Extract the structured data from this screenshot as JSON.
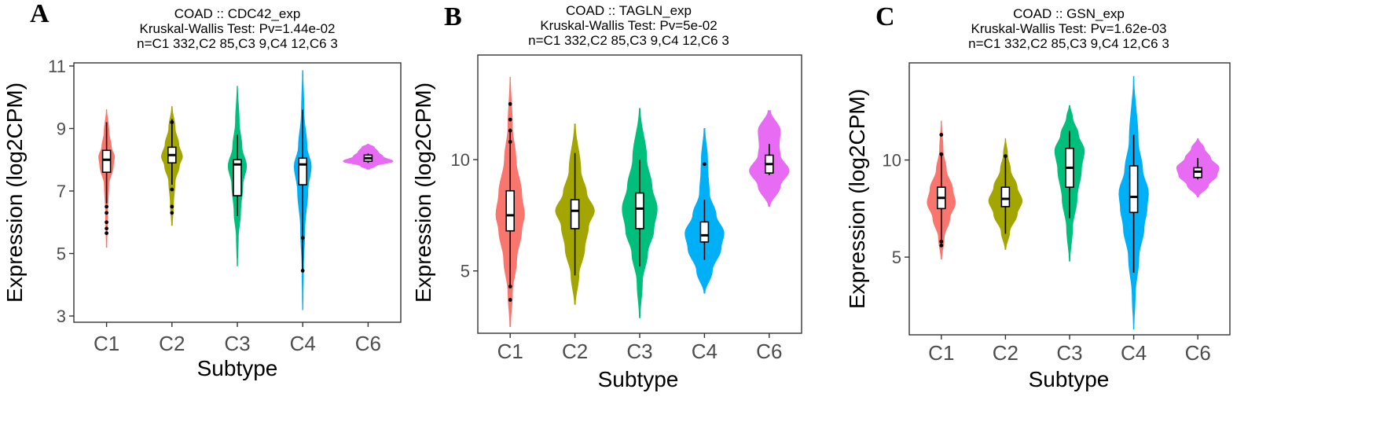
{
  "chart_data": [
    {
      "type": "violin",
      "panel_label": "A",
      "title_lines": [
        "COAD :: CDC42_exp",
        "Kruskal-Wallis Test: Pv=1.44e-02",
        "n=C1 332,C2 85,C3 9,C4 12,C6 3"
      ],
      "xlabel": "Subtype",
      "ylabel": "Expression (log2CPM)",
      "ylim": [
        2.8,
        11.1
      ],
      "yticks": [
        3,
        5,
        7,
        9,
        11
      ],
      "categories": [
        "C1",
        "C2",
        "C3",
        "C4",
        "C6"
      ],
      "colors": [
        "#F8766D",
        "#A3A500",
        "#00BF7D",
        "#00B0F6",
        "#E76BF3"
      ],
      "violins": [
        {
          "min": 5.2,
          "max": 9.6,
          "halfwidth": 0.12,
          "profile": [
            [
              5.2,
              0.03
            ],
            [
              6.3,
              0.12
            ],
            [
              7.2,
              0.28
            ],
            [
              7.8,
              0.85
            ],
            [
              8.1,
              1.0
            ],
            [
              8.4,
              0.6
            ],
            [
              8.9,
              0.3
            ],
            [
              9.6,
              0.02
            ]
          ]
        },
        {
          "min": 5.9,
          "max": 9.7,
          "halfwidth": 0.16,
          "profile": [
            [
              5.9,
              0.03
            ],
            [
              6.6,
              0.15
            ],
            [
              7.3,
              0.3
            ],
            [
              7.8,
              0.7
            ],
            [
              8.1,
              1.0
            ],
            [
              8.5,
              0.65
            ],
            [
              9.0,
              0.3
            ],
            [
              9.7,
              0.02
            ]
          ]
        },
        {
          "min": 4.6,
          "max": 10.35,
          "halfwidth": 0.14,
          "profile": [
            [
              4.6,
              0.02
            ],
            [
              5.5,
              0.1
            ],
            [
              6.3,
              0.35
            ],
            [
              7.2,
              0.6
            ],
            [
              7.8,
              1.0
            ],
            [
              8.4,
              0.5
            ],
            [
              9.2,
              0.2
            ],
            [
              10.35,
              0.02
            ]
          ]
        },
        {
          "min": 3.2,
          "max": 10.85,
          "halfwidth": 0.13,
          "profile": [
            [
              3.2,
              0.02
            ],
            [
              4.5,
              0.08
            ],
            [
              5.8,
              0.25
            ],
            [
              7.0,
              0.6
            ],
            [
              7.8,
              1.0
            ],
            [
              8.4,
              0.5
            ],
            [
              9.5,
              0.15
            ],
            [
              10.85,
              0.02
            ]
          ]
        },
        {
          "min": 7.7,
          "max": 8.5,
          "halfwidth": 0.38,
          "profile": [
            [
              7.7,
              0.05
            ],
            [
              7.8,
              0.3
            ],
            [
              7.95,
              1.0
            ],
            [
              8.1,
              0.6
            ],
            [
              8.25,
              0.4
            ],
            [
              8.4,
              0.25
            ],
            [
              8.5,
              0.02
            ]
          ]
        }
      ],
      "boxes": [
        {
          "q1": 7.6,
          "median": 8.0,
          "q3": 8.3,
          "wmin": 6.6,
          "wmax": 9.2,
          "outliers": [
            5.65,
            5.8,
            6.0,
            6.3,
            6.5
          ]
        },
        {
          "q1": 7.9,
          "median": 8.15,
          "q3": 8.4,
          "wmin": 7.2,
          "wmax": 9.3,
          "outliers": [
            6.3,
            6.5,
            7.05,
            9.2
          ]
        },
        {
          "q1": 6.85,
          "median": 7.85,
          "q3": 8.0,
          "wmin": 6.2,
          "wmax": 8.8,
          "outliers": []
        },
        {
          "q1": 7.2,
          "median": 7.85,
          "q3": 8.05,
          "wmin": 4.4,
          "wmax": 9.6,
          "outliers": [
            4.45,
            5.5
          ]
        },
        {
          "q1": 7.95,
          "median": 8.05,
          "q3": 8.15,
          "wmin": 7.9,
          "wmax": 8.2,
          "outliers": []
        }
      ]
    },
    {
      "type": "violin",
      "panel_label": "B",
      "title_lines": [
        "COAD :: TAGLN_exp",
        "Kruskal-Wallis Test: Pv=5e-02",
        "n=C1 332,C2 85,C3 9,C4 12,C6 3"
      ],
      "xlabel": "Subtype",
      "ylabel": "Expression (log2CPM)",
      "ylim": [
        2.2,
        14.7
      ],
      "yticks": [
        5,
        10
      ],
      "categories": [
        "C1",
        "C2",
        "C3",
        "C4",
        "C6"
      ],
      "colors": [
        "#F8766D",
        "#A3A500",
        "#00BF7D",
        "#00B0F6",
        "#E76BF3"
      ],
      "violins": [
        {
          "min": 2.5,
          "max": 13.7,
          "halfwidth": 0.22,
          "profile": [
            [
              2.5,
              0.02
            ],
            [
              4.0,
              0.15
            ],
            [
              5.5,
              0.45
            ],
            [
              6.8,
              0.8
            ],
            [
              7.5,
              1.0
            ],
            [
              8.5,
              0.8
            ],
            [
              10.0,
              0.4
            ],
            [
              11.5,
              0.15
            ],
            [
              13.7,
              0.01
            ]
          ]
        },
        {
          "min": 3.5,
          "max": 11.6,
          "halfwidth": 0.3,
          "profile": [
            [
              3.5,
              0.02
            ],
            [
              4.8,
              0.2
            ],
            [
              6.0,
              0.5
            ],
            [
              7.0,
              0.7
            ],
            [
              7.7,
              1.0
            ],
            [
              8.5,
              0.6
            ],
            [
              9.5,
              0.3
            ],
            [
              11.6,
              0.02
            ]
          ]
        },
        {
          "min": 2.9,
          "max": 12.3,
          "halfwidth": 0.27,
          "profile": [
            [
              2.9,
              0.02
            ],
            [
              4.5,
              0.15
            ],
            [
              5.8,
              0.45
            ],
            [
              6.8,
              0.8
            ],
            [
              7.8,
              1.0
            ],
            [
              8.8,
              0.7
            ],
            [
              10.0,
              0.4
            ],
            [
              12.3,
              0.02
            ]
          ]
        },
        {
          "min": 4.0,
          "max": 11.4,
          "halfwidth": 0.3,
          "profile": [
            [
              4.0,
              0.02
            ],
            [
              5.0,
              0.4
            ],
            [
              6.0,
              0.85
            ],
            [
              6.7,
              1.0
            ],
            [
              7.5,
              0.6
            ],
            [
              8.5,
              0.25
            ],
            [
              9.5,
              0.18
            ],
            [
              10.0,
              0.16
            ],
            [
              11.4,
              0.02
            ]
          ]
        },
        {
          "min": 7.9,
          "max": 12.2,
          "halfwidth": 0.34,
          "profile": [
            [
              7.9,
              0.03
            ],
            [
              8.8,
              0.5
            ],
            [
              9.5,
              0.9
            ],
            [
              10.2,
              0.5
            ],
            [
              10.6,
              0.45
            ],
            [
              11.3,
              0.5
            ],
            [
              12.2,
              0.05
            ]
          ]
        }
      ],
      "boxes": [
        {
          "q1": 6.8,
          "median": 7.5,
          "q3": 8.6,
          "wmin": 4.3,
          "wmax": 11.4,
          "outliers": [
            3.7,
            4.3,
            10.8,
            11.3,
            11.8,
            12.5
          ]
        },
        {
          "q1": 6.9,
          "median": 7.7,
          "q3": 8.2,
          "wmin": 4.8,
          "wmax": 10.3,
          "outliers": []
        },
        {
          "q1": 6.9,
          "median": 7.8,
          "q3": 8.5,
          "wmin": 5.2,
          "wmax": 10.0,
          "outliers": []
        },
        {
          "q1": 6.3,
          "median": 6.6,
          "q3": 7.2,
          "wmin": 5.5,
          "wmax": 8.2,
          "outliers": [
            9.8
          ]
        },
        {
          "q1": 9.4,
          "median": 9.8,
          "q3": 10.2,
          "wmin": 9.3,
          "wmax": 10.7,
          "outliers": []
        }
      ]
    },
    {
      "type": "violin",
      "panel_label": "C",
      "title_lines": [
        "COAD :: GSN_exp",
        "Kruskal-Wallis Test: Pv=1.62e-03",
        "n=C1 332,C2 85,C3 9,C4 12,C6 3"
      ],
      "xlabel": "Subtype",
      "ylabel": "Expression (log2CPM)",
      "ylim": [
        1.0,
        15.0
      ],
      "yticks": [
        5,
        10
      ],
      "categories": [
        "C1",
        "C2",
        "C3",
        "C4",
        "C6"
      ],
      "colors": [
        "#F8766D",
        "#A3A500",
        "#00BF7D",
        "#00B0F6",
        "#E76BF3"
      ],
      "violins": [
        {
          "min": 4.9,
          "max": 12.0,
          "halfwidth": 0.22,
          "profile": [
            [
              4.9,
              0.02
            ],
            [
              6.0,
              0.2
            ],
            [
              7.0,
              0.6
            ],
            [
              7.8,
              1.0
            ],
            [
              8.5,
              0.8
            ],
            [
              9.5,
              0.35
            ],
            [
              10.5,
              0.12
            ],
            [
              12.0,
              0.01
            ]
          ]
        },
        {
          "min": 5.4,
          "max": 11.1,
          "halfwidth": 0.26,
          "profile": [
            [
              5.4,
              0.02
            ],
            [
              6.3,
              0.25
            ],
            [
              7.2,
              0.7
            ],
            [
              7.9,
              1.0
            ],
            [
              8.6,
              0.7
            ],
            [
              9.5,
              0.3
            ],
            [
              10.3,
              0.12
            ],
            [
              11.1,
              0.01
            ]
          ]
        },
        {
          "min": 4.8,
          "max": 12.8,
          "halfwidth": 0.23,
          "profile": [
            [
              4.8,
              0.02
            ],
            [
              6.5,
              0.2
            ],
            [
              8.0,
              0.5
            ],
            [
              9.5,
              0.8
            ],
            [
              10.5,
              1.0
            ],
            [
              11.3,
              0.6
            ],
            [
              12.2,
              0.2
            ],
            [
              12.8,
              0.02
            ]
          ]
        },
        {
          "min": 1.3,
          "max": 14.3,
          "halfwidth": 0.23,
          "profile": [
            [
              1.3,
              0.01
            ],
            [
              3.0,
              0.1
            ],
            [
              5.0,
              0.35
            ],
            [
              6.5,
              0.7
            ],
            [
              7.5,
              0.9
            ],
            [
              8.3,
              1.0
            ],
            [
              9.5,
              0.6
            ],
            [
              11.0,
              0.3
            ],
            [
              14.3,
              0.01
            ]
          ]
        },
        {
          "min": 8.1,
          "max": 11.1,
          "halfwidth": 0.33,
          "profile": [
            [
              8.1,
              0.03
            ],
            [
              8.7,
              0.5
            ],
            [
              9.2,
              0.9
            ],
            [
              9.6,
              1.0
            ],
            [
              10.1,
              0.6
            ],
            [
              10.6,
              0.3
            ],
            [
              11.1,
              0.02
            ]
          ]
        }
      ],
      "boxes": [
        {
          "q1": 7.5,
          "median": 8.05,
          "q3": 8.6,
          "wmin": 5.9,
          "wmax": 10.3,
          "outliers": [
            5.6,
            5.8,
            10.3,
            11.3
          ]
        },
        {
          "q1": 7.6,
          "median": 8.0,
          "q3": 8.6,
          "wmin": 6.2,
          "wmax": 10.2,
          "outliers": [
            10.2
          ]
        },
        {
          "q1": 8.6,
          "median": 9.6,
          "q3": 10.6,
          "wmin": 7.0,
          "wmax": 11.5,
          "outliers": []
        },
        {
          "q1": 7.3,
          "median": 8.1,
          "q3": 9.7,
          "wmin": 4.2,
          "wmax": 11.3,
          "outliers": []
        },
        {
          "q1": 9.1,
          "median": 9.4,
          "q3": 9.6,
          "wmin": 9.0,
          "wmax": 10.1,
          "outliers": []
        }
      ]
    }
  ]
}
